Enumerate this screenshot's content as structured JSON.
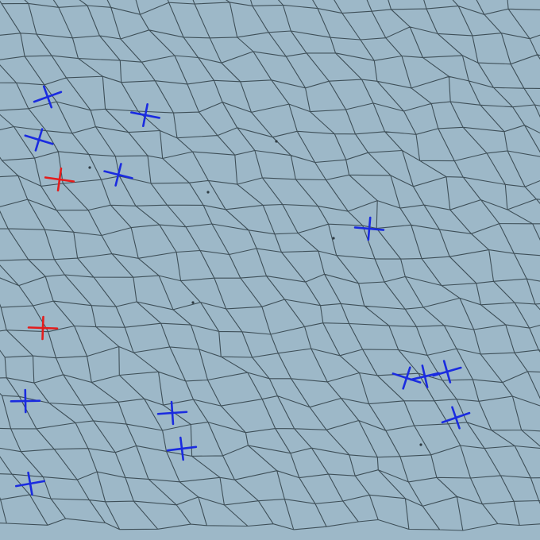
{
  "image": {
    "background_color": "#9db8c8",
    "cell_wall_color": "#3e4f58",
    "marker_colors": {
      "blue": "#1a2be0",
      "red": "#e41c1c"
    },
    "markers": [
      {
        "id": "m1",
        "color": "blue"
      },
      {
        "id": "m2",
        "color": "blue"
      },
      {
        "id": "m3",
        "color": "blue"
      },
      {
        "id": "m4",
        "color": "blue"
      },
      {
        "id": "m5",
        "color": "red"
      },
      {
        "id": "m6",
        "color": "blue"
      },
      {
        "id": "m7",
        "color": "red"
      },
      {
        "id": "m8",
        "color": "blue"
      },
      {
        "id": "m9",
        "color": "blue"
      },
      {
        "id": "m10",
        "color": "blue"
      },
      {
        "id": "m11",
        "color": "blue"
      },
      {
        "id": "m12",
        "color": "blue"
      },
      {
        "id": "m13",
        "color": "blue"
      },
      {
        "id": "m14",
        "color": "blue"
      },
      {
        "id": "m15",
        "color": "blue"
      }
    ]
  }
}
